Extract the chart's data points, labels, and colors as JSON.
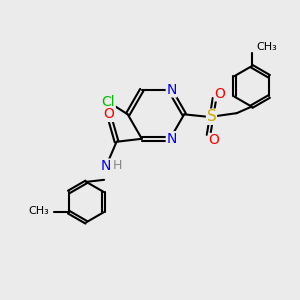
{
  "background_color": "#ebebeb",
  "bond_color": "#000000",
  "bond_width": 1.5,
  "atom_colors": {
    "N": "#0000ff",
    "O": "#ff0000",
    "S": "#ccaa00",
    "Cl": "#00bb00",
    "H": "#888888"
  },
  "font_size": 9,
  "fig_size": [
    3.0,
    3.0
  ],
  "dpi": 100,
  "xlim": [
    0,
    10
  ],
  "ylim": [
    0,
    10
  ]
}
